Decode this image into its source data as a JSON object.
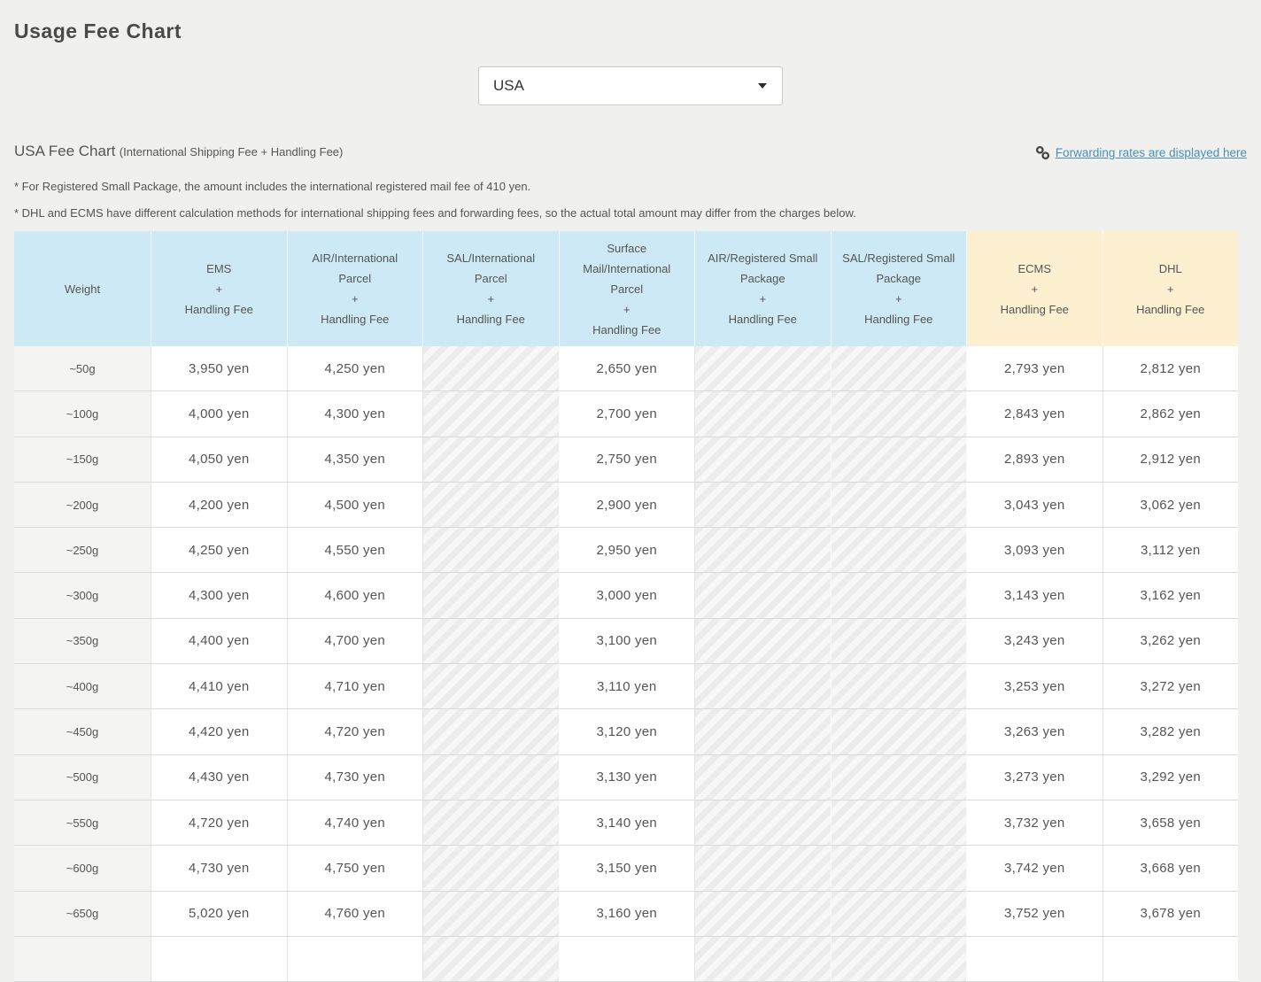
{
  "page": {
    "title": "Usage Fee Chart"
  },
  "country_select": {
    "value": "USA"
  },
  "section": {
    "heading": "USA Fee Chart",
    "heading_sub": "(International Shipping Fee + Handling Fee)",
    "link_label": "Forwarding rates are displayed here",
    "notes": [
      "* For Registered Small Package, the amount includes the international registered mail fee of 410 yen.",
      "* DHL and ECMS have different calculation methods for international shipping fees and forwarding fees, so the actual total amount may differ from the charges below."
    ]
  },
  "ui_colors": {
    "header_blue": "#cde9f6",
    "header_yellow": "#fdf0d0",
    "link_blue": "#4a90b5",
    "page_background": "#f0f0ef"
  },
  "table": {
    "columns": [
      {
        "id": "weight",
        "label": "Weight",
        "group": "blue",
        "striped": false
      },
      {
        "id": "ems",
        "label": "EMS\n+\nHandling Fee",
        "group": "blue",
        "striped": false
      },
      {
        "id": "air-international-parcel",
        "label": "AIR/International\nParcel\n+\nHandling Fee",
        "group": "blue",
        "striped": false
      },
      {
        "id": "sal-international-parcel",
        "label": "SAL/International\nParcel\n+\nHandling Fee",
        "group": "blue",
        "striped": true
      },
      {
        "id": "surface-mail-international-parcel",
        "label": "Surface\nMail/International\nParcel\n+\nHandling Fee",
        "group": "blue",
        "striped": false
      },
      {
        "id": "air-registered-small-package",
        "label": "AIR/Registered Small\nPackage\n+\nHandling Fee",
        "group": "blue",
        "striped": true
      },
      {
        "id": "sal-registered-small-package",
        "label": "SAL/Registered Small\nPackage\n+\nHandling Fee",
        "group": "blue",
        "striped": true
      },
      {
        "id": "ecms",
        "label": "ECMS\n+\nHandling Fee",
        "group": "yellow",
        "striped": false
      },
      {
        "id": "dhl",
        "label": "DHL\n+\nHandling Fee",
        "group": "yellow",
        "striped": false
      }
    ],
    "rows": [
      {
        "weight": "~50g",
        "cells": [
          "3,950 yen",
          "4,250 yen",
          null,
          "2,650 yen",
          null,
          null,
          "2,793 yen",
          "2,812 yen"
        ]
      },
      {
        "weight": "~100g",
        "cells": [
          "4,000 yen",
          "4,300 yen",
          null,
          "2,700 yen",
          null,
          null,
          "2,843 yen",
          "2,862 yen"
        ]
      },
      {
        "weight": "~150g",
        "cells": [
          "4,050 yen",
          "4,350 yen",
          null,
          "2,750 yen",
          null,
          null,
          "2,893 yen",
          "2,912 yen"
        ]
      },
      {
        "weight": "~200g",
        "cells": [
          "4,200 yen",
          "4,500 yen",
          null,
          "2,900 yen",
          null,
          null,
          "3,043 yen",
          "3,062 yen"
        ]
      },
      {
        "weight": "~250g",
        "cells": [
          "4,250 yen",
          "4,550 yen",
          null,
          "2,950 yen",
          null,
          null,
          "3,093 yen",
          "3,112 yen"
        ]
      },
      {
        "weight": "~300g",
        "cells": [
          "4,300 yen",
          "4,600 yen",
          null,
          "3,000 yen",
          null,
          null,
          "3,143 yen",
          "3,162 yen"
        ]
      },
      {
        "weight": "~350g",
        "cells": [
          "4,400 yen",
          "4,700 yen",
          null,
          "3,100 yen",
          null,
          null,
          "3,243 yen",
          "3,262 yen"
        ]
      },
      {
        "weight": "~400g",
        "cells": [
          "4,410 yen",
          "4,710 yen",
          null,
          "3,110 yen",
          null,
          null,
          "3,253 yen",
          "3,272 yen"
        ]
      },
      {
        "weight": "~450g",
        "cells": [
          "4,420 yen",
          "4,720 yen",
          null,
          "3,120 yen",
          null,
          null,
          "3,263 yen",
          "3,282 yen"
        ]
      },
      {
        "weight": "~500g",
        "cells": [
          "4,430 yen",
          "4,730 yen",
          null,
          "3,130 yen",
          null,
          null,
          "3,273 yen",
          "3,292 yen"
        ]
      },
      {
        "weight": "~550g",
        "cells": [
          "4,720 yen",
          "4,740 yen",
          null,
          "3,140 yen",
          null,
          null,
          "3,732 yen",
          "3,658 yen"
        ]
      },
      {
        "weight": "~600g",
        "cells": [
          "4,730 yen",
          "4,750 yen",
          null,
          "3,150 yen",
          null,
          null,
          "3,742 yen",
          "3,668 yen"
        ]
      },
      {
        "weight": "~650g",
        "cells": [
          "5,020 yen",
          "4,760 yen",
          null,
          "3,160 yen",
          null,
          null,
          "3,752 yen",
          "3,678 yen"
        ]
      }
    ]
  }
}
